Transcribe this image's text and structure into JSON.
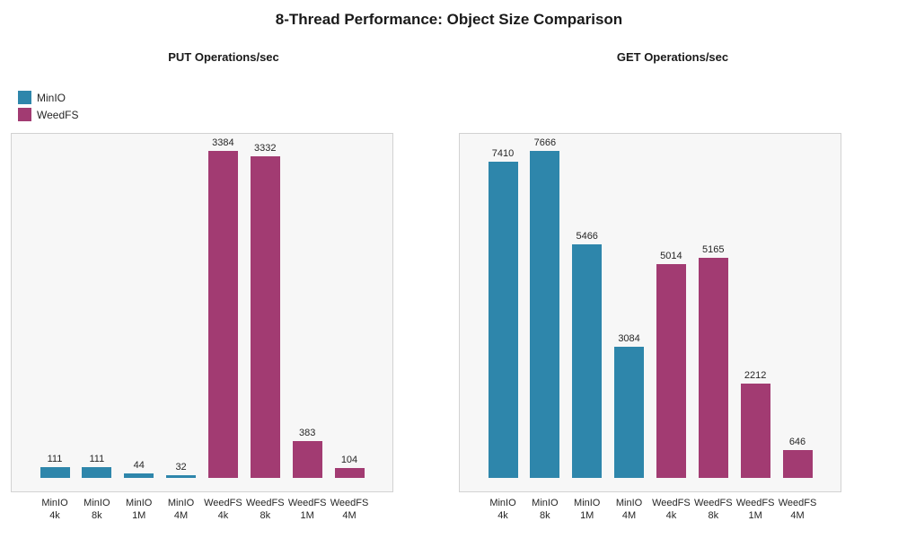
{
  "title": "8-Thread Performance: Object Size Comparison",
  "legend": {
    "position": "upper-left-outside",
    "items": [
      {
        "label": "MinIO",
        "color": "#2E86AB"
      },
      {
        "label": "WeedFS",
        "color": "#A23B72"
      }
    ]
  },
  "colors": {
    "plot_background": "#f7f7f7",
    "plot_border": "#d2d2d2",
    "text": "#262626"
  },
  "chart_data": [
    {
      "type": "bar",
      "title": "PUT Operations/sec",
      "categories": [
        [
          "MinIO",
          "4k"
        ],
        [
          "MinIO",
          "8k"
        ],
        [
          "MinIO",
          "1M"
        ],
        [
          "MinIO",
          "4M"
        ],
        [
          "WeedFS",
          "4k"
        ],
        [
          "WeedFS",
          "8k"
        ],
        [
          "WeedFS",
          "1M"
        ],
        [
          "WeedFS",
          "4M"
        ]
      ],
      "values": [
        111,
        111,
        44,
        32,
        3384,
        3332,
        383,
        104
      ],
      "bar_groups": [
        0,
        0,
        0,
        0,
        1,
        1,
        1,
        1
      ],
      "value_labels": [
        "111",
        "111",
        "44",
        "32",
        "3384",
        "3332",
        "383",
        "104"
      ],
      "xlabel": "",
      "ylabel": "",
      "ylim": [
        -170,
        3553
      ],
      "grid": false,
      "yaxis_ticks_visible": false
    },
    {
      "type": "bar",
      "title": "GET Operations/sec",
      "categories": [
        [
          "MinIO",
          "4k"
        ],
        [
          "MinIO",
          "8k"
        ],
        [
          "MinIO",
          "1M"
        ],
        [
          "MinIO",
          "4M"
        ],
        [
          "WeedFS",
          "4k"
        ],
        [
          "WeedFS",
          "8k"
        ],
        [
          "WeedFS",
          "1M"
        ],
        [
          "WeedFS",
          "4M"
        ]
      ],
      "values": [
        7410,
        7666,
        5466,
        3084,
        5014,
        5165,
        2212,
        646
      ],
      "bar_groups": [
        0,
        0,
        0,
        0,
        1,
        1,
        1,
        1
      ],
      "value_labels": [
        "7410",
        "7666",
        "5466",
        "3084",
        "5014",
        "5165",
        "2212",
        "646"
      ],
      "xlabel": "",
      "ylabel": "",
      "ylim": [
        -383,
        8049
      ],
      "grid": false,
      "yaxis_ticks_visible": false
    }
  ]
}
